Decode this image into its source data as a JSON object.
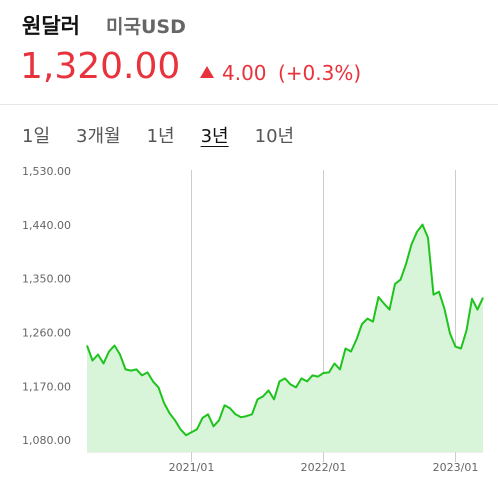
{
  "header": {
    "title": "원달러",
    "subtitle": "미국USD",
    "price": "1,320.00",
    "change": "4.00",
    "change_pct": "(+0.3%)"
  },
  "tabs": [
    "1일",
    "3개월",
    "1년",
    "3년",
    "10년"
  ],
  "selected_tab": 3,
  "chart_data": {
    "type": "line",
    "categories": [
      null,
      null,
      null,
      null,
      null,
      null,
      null,
      null,
      null,
      null,
      null,
      null,
      null,
      null,
      null,
      null,
      null,
      null,
      null,
      "2021/01",
      null,
      null,
      null,
      null,
      null,
      null,
      null,
      null,
      null,
      null,
      null,
      null,
      null,
      null,
      null,
      null,
      null,
      null,
      null,
      null,
      null,
      null,
      null,
      "2022/01",
      null,
      null,
      null,
      null,
      null,
      null,
      null,
      null,
      null,
      null,
      null,
      null,
      null,
      null,
      null,
      null,
      null,
      null,
      null,
      null,
      null,
      null,
      null,
      "2023/01",
      null,
      null,
      null,
      null,
      null
    ],
    "values": [
      1240,
      1215,
      1225,
      1210,
      1230,
      1240,
      1225,
      1200,
      1198,
      1200,
      1190,
      1195,
      1180,
      1170,
      1144,
      1127,
      1115,
      1100,
      1090,
      1095,
      1100,
      1119,
      1125,
      1105,
      1115,
      1140,
      1135,
      1125,
      1120,
      1122,
      1125,
      1150,
      1155,
      1165,
      1150,
      1180,
      1185,
      1175,
      1170,
      1185,
      1180,
      1190,
      1188,
      1194,
      1195,
      1210,
      1200,
      1235,
      1230,
      1250,
      1276,
      1285,
      1280,
      1321,
      1310,
      1300,
      1343,
      1350,
      1376,
      1409,
      1430,
      1442,
      1420,
      1325,
      1330,
      1301,
      1260,
      1238,
      1235,
      1265,
      1318,
      1300,
      1320
    ],
    "color": "#1ec31e",
    "fill": "#d9f5d9",
    "ylim": [
      1062,
      1530
    ],
    "yticks": [
      {
        "value": 1080,
        "label": "1,080.00"
      },
      {
        "value": 1170,
        "label": "1,170.00"
      },
      {
        "value": 1260,
        "label": "1,260.00"
      },
      {
        "value": 1350,
        "label": "1,350.00"
      },
      {
        "value": 1440,
        "label": "1,440.00"
      },
      {
        "value": 1530,
        "label": "1,530.00"
      }
    ],
    "grid": true
  }
}
